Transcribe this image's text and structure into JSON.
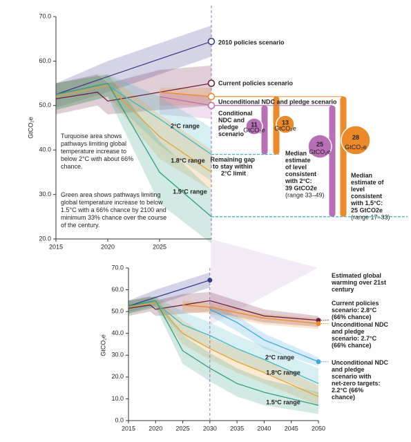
{
  "chart_data": [
    {
      "type": "line",
      "ylabel": "GtCO₂e",
      "xlim": [
        2015,
        2030
      ],
      "ylim": [
        20,
        70
      ],
      "xticks": [
        2015,
        2020,
        2025
      ],
      "yticks": [
        {
          "value": 20,
          "label": "20.0"
        },
        {
          "value": 30,
          "label": "30.0"
        },
        {
          "value": 40,
          "label": "40.0"
        },
        {
          "value": 50,
          "label": "50.0"
        },
        {
          "value": 60,
          "label": "60.0"
        },
        {
          "value": 70,
          "label": "70.0"
        }
      ],
      "series": [
        {
          "name": "2010 policies scenario",
          "color": "#3b3b8c",
          "marker": true,
          "x": [
            2015,
            2020,
            2030
          ],
          "values": [
            52.5,
            56.5,
            64.4
          ],
          "band_low": [
            49.5,
            53,
            61
          ],
          "band_high": [
            55,
            60,
            68
          ]
        },
        {
          "name": "Current policies scenario",
          "color": "#6e1f3f",
          "marker": true,
          "x": [
            2015,
            2019,
            2020,
            2025,
            2030
          ],
          "values": [
            51.5,
            53,
            51,
            53,
            55
          ],
          "band_low": [
            48,
            50,
            48,
            49,
            50
          ],
          "band_high": [
            55,
            57,
            55,
            58,
            59
          ]
        },
        {
          "name": "Unconditional NDC and pledge scenario",
          "color": "#ec8a2a",
          "marker": true,
          "x": [
            2025,
            2030
          ],
          "values": [
            53,
            52
          ],
          "band_low": [
            50,
            50
          ],
          "band_high": [
            54,
            54
          ]
        },
        {
          "name": "Conditional NDC and pledge scenario",
          "color": "#b86fb6",
          "marker": true,
          "x": [
            2025,
            2030
          ],
          "values": [
            52,
            50
          ],
          "band_low": [
            48,
            47
          ],
          "band_high": [
            53,
            52
          ]
        },
        {
          "name": "2°C range",
          "color": "#3fb5c2",
          "x": [
            2015,
            2020,
            2025,
            2030
          ],
          "values": [
            52,
            54.5,
            47,
            39
          ],
          "band_low": [
            49,
            52,
            41,
            33
          ],
          "band_high": [
            55,
            57,
            52,
            45
          ]
        },
        {
          "name": "1.8°C range",
          "color": "#e8a030",
          "x": [
            2015,
            2020,
            2025,
            2030
          ],
          "values": [
            52,
            54.5,
            43,
            35
          ],
          "band_low": [
            49,
            52,
            38,
            31
          ],
          "band_high": [
            55,
            57,
            48,
            40
          ]
        },
        {
          "name": "1.5°C range",
          "color": "#2e9e7e",
          "x": [
            2015,
            2020,
            2025,
            2030
          ],
          "values": [
            52.5,
            55,
            35,
            25
          ],
          "band_low": [
            49,
            52,
            28,
            19
          ],
          "band_high": [
            55,
            57,
            42,
            31
          ]
        }
      ],
      "gap_unit": "GtCO₂e",
      "gaps": [
        {
          "value": 11,
          "color": "#b86fb6",
          "from": 50,
          "to": 39
        },
        {
          "value": 13,
          "color": "#ec8a2a",
          "from": 52,
          "to": 39
        },
        {
          "value": 25,
          "color": "#b86fb6",
          "from": 50,
          "to": 25
        },
        {
          "value": 28,
          "color": "#ec8a2a",
          "from": 52,
          "to": 25
        }
      ],
      "annotations": [
        {
          "text": "Turquoise area shows pathways limiting global temperature increase to below 2°C with about 66% chance.",
          "color": "#222"
        },
        {
          "text": "Green area shows pathways limiting global temperature increase to below 1.5°C with a 66% chance by 2100 and minimum 33% chance over the course of the century.",
          "color": "#222"
        },
        {
          "text": "Remaining gap to stay within 2°C limit",
          "color": "#222"
        },
        {
          "text": "Median estimate of level consistent with 2°C:",
          "color": "#222"
        },
        {
          "text": "39 GtCO2e",
          "color": "#b86fb6"
        },
        {
          "text": "(range 33–49)",
          "color": "#222"
        },
        {
          "text": "Median estimate of level consistent with 1.5°C:",
          "color": "#222"
        },
        {
          "text": "25 GtCO2e",
          "color": "#b86fb6"
        },
        {
          "text": "(range 17–33)",
          "color": "#222"
        }
      ]
    },
    {
      "type": "line",
      "ylabel": "GtCO₂e",
      "xlim": [
        2015,
        2050
      ],
      "ylim": [
        0,
        70
      ],
      "xticks": [
        2015,
        2020,
        2025,
        2030,
        2035,
        2040,
        2045,
        2050
      ],
      "yticks": [
        {
          "value": 0,
          "label": "0.0"
        },
        {
          "value": 10,
          "label": "10.0"
        },
        {
          "value": 20,
          "label": "20.0"
        },
        {
          "value": 30,
          "label": "30.0"
        },
        {
          "value": 40,
          "label": "40.0"
        },
        {
          "value": 50,
          "label": "50.0"
        },
        {
          "value": 60,
          "label": "60.0"
        },
        {
          "value": 70,
          "label": "70.0"
        }
      ],
      "series": [
        {
          "color": "#3b3b8c",
          "marker": true,
          "x": [
            2015,
            2020,
            2030
          ],
          "values": [
            52.5,
            56.5,
            64.4
          ],
          "band_low": [
            49.5,
            53,
            61
          ],
          "band_high": [
            55,
            60,
            68
          ]
        },
        {
          "name": "Current policies scenario: 2.8°C (66% chance)",
          "color": "#6e1f3f",
          "marker": true,
          "x": [
            2015,
            2019,
            2020,
            2025,
            2030,
            2040,
            2050
          ],
          "values": [
            51.5,
            53,
            51,
            53,
            55,
            48,
            46
          ],
          "band_low": [
            48,
            50,
            48,
            49,
            50,
            45,
            43
          ],
          "band_high": [
            55,
            57,
            55,
            58,
            59,
            51,
            48
          ]
        },
        {
          "name": "Unconditional NDC and pledge scenario: 2.7°C (66% chance)",
          "color": "#ec8a2a",
          "marker": true,
          "x": [
            2025,
            2030,
            2040,
            2050
          ],
          "values": [
            53,
            52,
            47,
            44.5
          ],
          "band_low": [
            50,
            49,
            44,
            42
          ],
          "band_high": [
            55,
            54,
            49,
            47
          ]
        },
        {
          "name": "Unconditional NDC and pledge scenario with net-zero targets: 2.2°C (66% chance)",
          "color": "#3aa8dc",
          "marker": true,
          "x": [
            2030,
            2035,
            2040,
            2050
          ],
          "values": [
            51,
            45,
            37,
            27
          ],
          "band_low": [
            48,
            41,
            33,
            25
          ],
          "band_high": [
            53,
            48,
            40,
            29
          ]
        },
        {
          "name": "2°C range",
          "color": "#3fb5c2",
          "x": [
            2015,
            2020,
            2025,
            2030,
            2035,
            2040,
            2050
          ],
          "values": [
            52,
            54,
            44,
            39,
            33,
            28,
            17
          ],
          "band_low": [
            49,
            52,
            39,
            33,
            27,
            22,
            12
          ],
          "band_high": [
            55,
            57,
            50,
            45,
            39,
            34,
            24
          ]
        },
        {
          "name": "1.8°C range",
          "color": "#e8a030",
          "x": [
            2015,
            2020,
            2025,
            2030,
            2035,
            2040,
            2050
          ],
          "values": [
            52,
            54,
            40,
            33,
            27,
            22,
            11
          ],
          "band_low": [
            49,
            52,
            35,
            28,
            22,
            17,
            7
          ],
          "band_high": [
            55,
            57,
            46,
            38,
            33,
            28,
            16
          ]
        },
        {
          "name": "1.5°C range",
          "color": "#2e9e7e",
          "x": [
            2015,
            2020,
            2025,
            2030,
            2035,
            2040,
            2050
          ],
          "values": [
            52.5,
            55,
            32,
            24,
            17,
            13,
            7
          ],
          "band_low": [
            49,
            52,
            26,
            18,
            11,
            7,
            3
          ],
          "band_high": [
            55,
            57,
            39,
            31,
            24,
            19,
            13
          ]
        }
      ],
      "annotations": [
        {
          "text": "Estimated global warming over 21st century",
          "color": "#222"
        }
      ]
    }
  ]
}
